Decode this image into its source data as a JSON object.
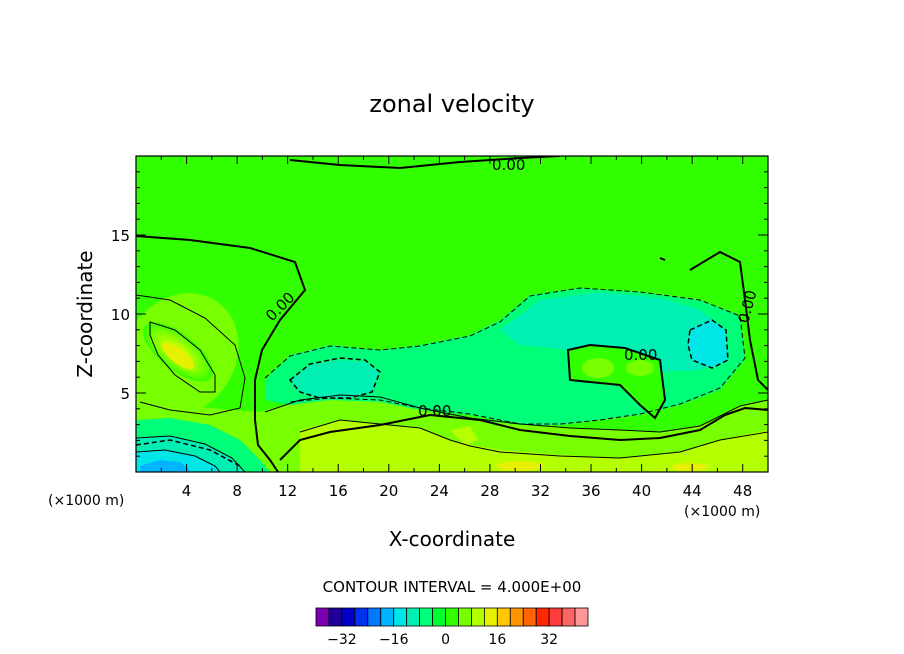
{
  "chart_data": {
    "type": "heatmap",
    "title": "zonal velocity",
    "xlabel": "X-coordinate",
    "ylabel": "Z-coordinate",
    "x_unit_left": "(×1000 m)",
    "x_unit_right": "(×1000 m)",
    "xlim": [
      0,
      50
    ],
    "ylim": [
      0,
      20
    ],
    "x_ticks": [
      4,
      8,
      12,
      16,
      20,
      24,
      28,
      32,
      36,
      40,
      44,
      48
    ],
    "x_tick_labels": [
      "4",
      "8",
      "12",
      "16",
      "20",
      "24",
      "28",
      "32",
      "36",
      "40",
      "44",
      "48"
    ],
    "y_ticks": [
      5,
      10,
      15
    ],
    "y_tick_labels": [
      "5",
      "10",
      "15"
    ],
    "contour_interval_text": "CONTOUR INTERVAL = 4.000E+00",
    "contour_interval": 4,
    "zero_contour_label": "0.00",
    "colorbar": {
      "colors": [
        "#7a00b4",
        "#1e0096",
        "#0000c8",
        "#0032f0",
        "#0078ff",
        "#00b4ff",
        "#00e6e6",
        "#00f0b4",
        "#00ff78",
        "#00ff32",
        "#32ff00",
        "#78ff00",
        "#b4ff00",
        "#e6f000",
        "#ffc800",
        "#ff9600",
        "#ff6400",
        "#ff2800",
        "#ff3c3c",
        "#ff6464",
        "#ff9696"
      ],
      "tick_values": [
        -32,
        -16,
        0,
        16,
        32
      ],
      "tick_labels": [
        "−32",
        "−16",
        "0",
        "16",
        "32"
      ],
      "min": -40,
      "max": 44
    }
  }
}
